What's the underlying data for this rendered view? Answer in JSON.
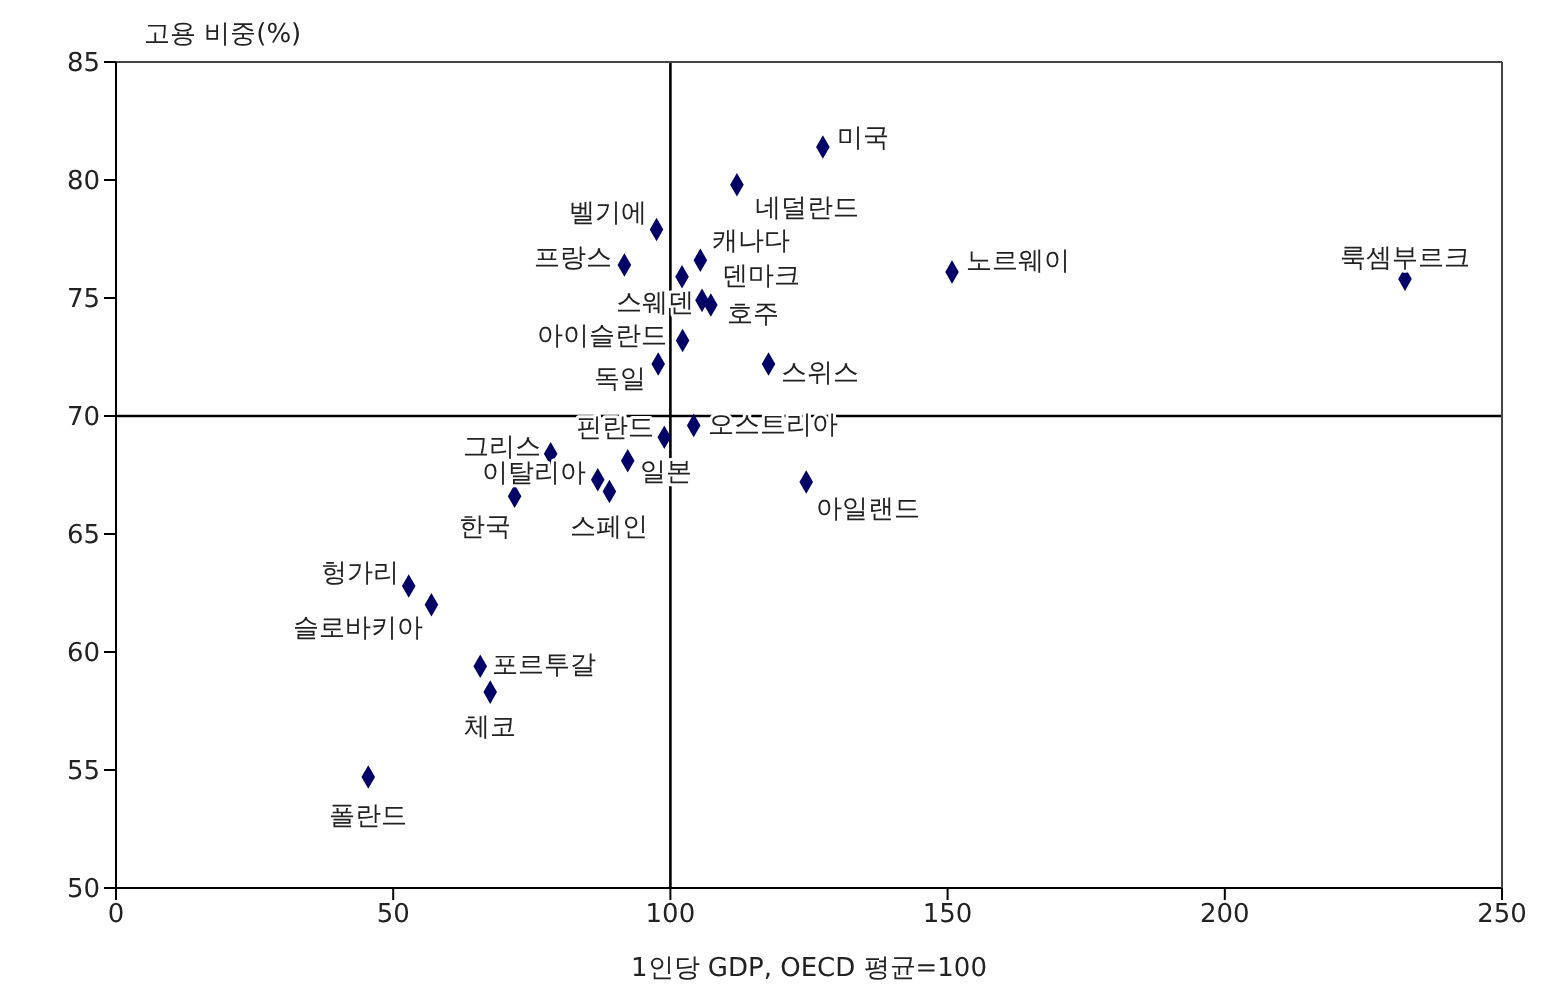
{
  "chart_data": {
    "type": "scatter",
    "xlabel": "1인당 GDP, OECD 평균=100",
    "ylabel": "고용 비중(%)",
    "xlim": [
      0,
      250
    ],
    "xticks": [
      0,
      50,
      100,
      150,
      200,
      250
    ],
    "ylim": [
      50,
      85
    ],
    "yticks": [
      50,
      55,
      60,
      65,
      70,
      75,
      80,
      85
    ],
    "grid": false,
    "legend": false,
    "marker": "diamond",
    "series": [
      {
        "color": "#000066",
        "x": [
          127.5,
          112,
          97.5,
          91.7,
          105.4,
          102.1,
          105.7,
          107.3,
          102.2,
          97.8,
          117.7,
          232.5,
          150.8,
          124.5,
          104.2,
          98.9,
          92.3,
          78.4,
          86.9,
          89,
          71.9,
          52.8,
          56.9,
          65.7,
          67.5,
          45.5
        ],
        "values": [
          81.4,
          79.8,
          77.9,
          76.4,
          76.6,
          75.9,
          74.9,
          74.7,
          73.2,
          72.2,
          72.2,
          75.8,
          76.1,
          67.2,
          69.6,
          69.1,
          68.1,
          68.4,
          67.3,
          66.8,
          66.6,
          62.8,
          62.0,
          59.4,
          58.3,
          54.7
        ]
      }
    ],
    "ref_lines": [
      {
        "axis": "x",
        "value": 100,
        "color": "#000000"
      },
      {
        "axis": "y",
        "value": 70,
        "color": "#000000"
      }
    ],
    "annotations": [
      {
        "text": "미국",
        "x": 127.5,
        "y": 81.4
      },
      {
        "text": "네덜란드",
        "x": 112,
        "y": 79.8
      },
      {
        "text": "벨기에",
        "x": 97.5,
        "y": 77.9
      },
      {
        "text": "프랑스",
        "x": 91.7,
        "y": 76.4
      },
      {
        "text": "캐나다",
        "x": 105.4,
        "y": 76.6
      },
      {
        "text": "덴마크",
        "x": 102.1,
        "y": 75.9
      },
      {
        "text": "스웨덴",
        "x": 105.7,
        "y": 74.9
      },
      {
        "text": "호주",
        "x": 107.3,
        "y": 74.7
      },
      {
        "text": "아이슬란드",
        "x": 102.2,
        "y": 73.2
      },
      {
        "text": "독일",
        "x": 97.8,
        "y": 72.2
      },
      {
        "text": "스위스",
        "x": 117.7,
        "y": 72.2
      },
      {
        "text": "룩셈부르크",
        "x": 232.5,
        "y": 75.8
      },
      {
        "text": "노르웨이",
        "x": 150.8,
        "y": 76.1
      },
      {
        "text": "아일랜드",
        "x": 124.5,
        "y": 67.2
      },
      {
        "text": "오스트리아",
        "x": 104.2,
        "y": 69.6
      },
      {
        "text": "핀란드",
        "x": 98.9,
        "y": 69.1
      },
      {
        "text": "일본",
        "x": 92.3,
        "y": 68.1
      },
      {
        "text": "그리스",
        "x": 78.4,
        "y": 68.4
      },
      {
        "text": "이탈리아",
        "x": 86.9,
        "y": 67.3
      },
      {
        "text": "스페인",
        "x": 89,
        "y": 66.8
      },
      {
        "text": "한국",
        "x": 71.9,
        "y": 66.6
      },
      {
        "text": "헝가리",
        "x": 52.8,
        "y": 62.8
      },
      {
        "text": "슬로바키아",
        "x": 56.9,
        "y": 62.0
      },
      {
        "text": "포르투갈",
        "x": 65.7,
        "y": 59.4
      },
      {
        "text": "체코",
        "x": 67.5,
        "y": 58.3
      },
      {
        "text": "폴란드",
        "x": 45.5,
        "y": 54.7
      }
    ]
  }
}
